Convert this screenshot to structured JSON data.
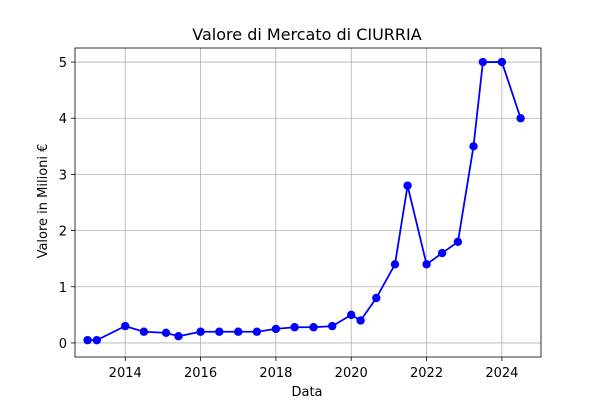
{
  "chart_data": {
    "type": "line",
    "title": "Valore di Mercato di CIURRIA",
    "xlabel": "Data",
    "ylabel": "Valore in Milioni €",
    "grid": true,
    "line_color": "#0000ff",
    "marker_color": "#0000ff",
    "xlim": [
      "2012-09-01",
      "2025-01-15"
    ],
    "ylim": [
      -0.25,
      5.25
    ],
    "x_ticks": [
      "2014",
      "2016",
      "2018",
      "2020",
      "2022",
      "2024"
    ],
    "y_ticks": [
      "0",
      "1",
      "2",
      "3",
      "4",
      "5"
    ],
    "series": [
      {
        "x": [
          "2013-01-01",
          "2013-04-01",
          "2014-01-01",
          "2014-07-01",
          "2015-02-01",
          "2015-06-01",
          "2016-01-01",
          "2016-07-01",
          "2017-01-01",
          "2017-07-01",
          "2018-01-01",
          "2018-07-01",
          "2019-01-01",
          "2019-07-01",
          "2020-01-01",
          "2020-04-01",
          "2020-09-01",
          "2021-03-01",
          "2021-07-01",
          "2022-01-01",
          "2022-06-01",
          "2022-11-01",
          "2023-04-01",
          "2023-07-01",
          "2024-01-01",
          "2024-07-01"
        ],
        "values": [
          0.05,
          0.05,
          0.3,
          0.2,
          0.18,
          0.12,
          0.2,
          0.2,
          0.2,
          0.2,
          0.25,
          0.28,
          0.28,
          0.3,
          0.5,
          0.4,
          0.8,
          1.4,
          2.8,
          1.4,
          1.6,
          1.8,
          3.5,
          5.0,
          5.0,
          4.0
        ]
      }
    ]
  }
}
